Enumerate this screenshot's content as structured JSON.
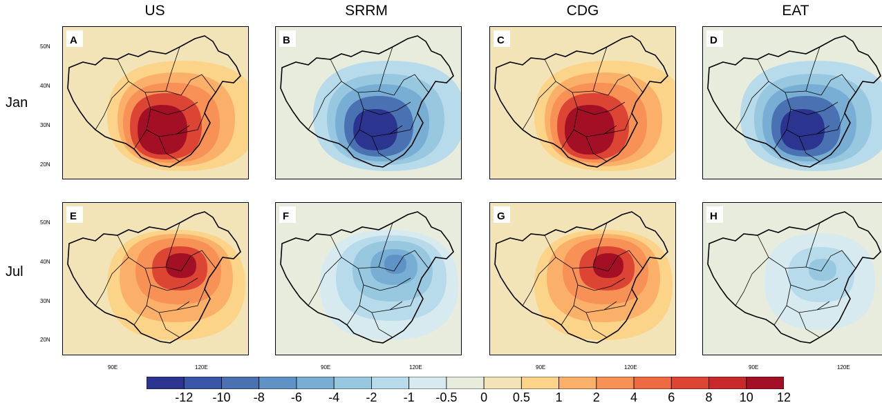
{
  "columns": [
    "US",
    "SRRM",
    "CDG",
    "EAT"
  ],
  "rows": [
    "Jan",
    "Jul"
  ],
  "panels": [
    {
      "letter": "A",
      "column": "US",
      "row": "Jan",
      "pattern": "pos-strong-south"
    },
    {
      "letter": "B",
      "column": "SRRM",
      "row": "Jan",
      "pattern": "neg-strong-south"
    },
    {
      "letter": "C",
      "column": "CDG",
      "row": "Jan",
      "pattern": "pos-strong-south"
    },
    {
      "letter": "D",
      "column": "EAT",
      "row": "Jan",
      "pattern": "neg-strong-south"
    },
    {
      "letter": "E",
      "column": "US",
      "row": "Jul",
      "pattern": "pos-north"
    },
    {
      "letter": "F",
      "column": "SRRM",
      "row": "Jul",
      "pattern": "neg-north"
    },
    {
      "letter": "G",
      "column": "CDG",
      "row": "Jul",
      "pattern": "pos-north"
    },
    {
      "letter": "H",
      "column": "EAT",
      "row": "Jul",
      "pattern": "neg-weak"
    }
  ],
  "lat_ticks": [
    "50N",
    "40N",
    "30N",
    "20N"
  ],
  "lon_ticks": [
    "90E",
    "120E"
  ],
  "colorbar": {
    "colors": [
      "#2b3590",
      "#3a56a6",
      "#4a72b3",
      "#5f93c5",
      "#78aed3",
      "#98c7e0",
      "#b7dbea",
      "#d6eaf0",
      "#e8ecdc",
      "#f2e4b6",
      "#fbd48a",
      "#fbb069",
      "#f79155",
      "#ee6a43",
      "#dc4433",
      "#c82a2b",
      "#a30f25"
    ],
    "labels": [
      "-12",
      "-10",
      "-8",
      "-6",
      "-4",
      "-2",
      "-1",
      "-0.5",
      "0",
      "0.5",
      "1",
      "2",
      "4",
      "6",
      "8",
      "10",
      "12"
    ]
  }
}
